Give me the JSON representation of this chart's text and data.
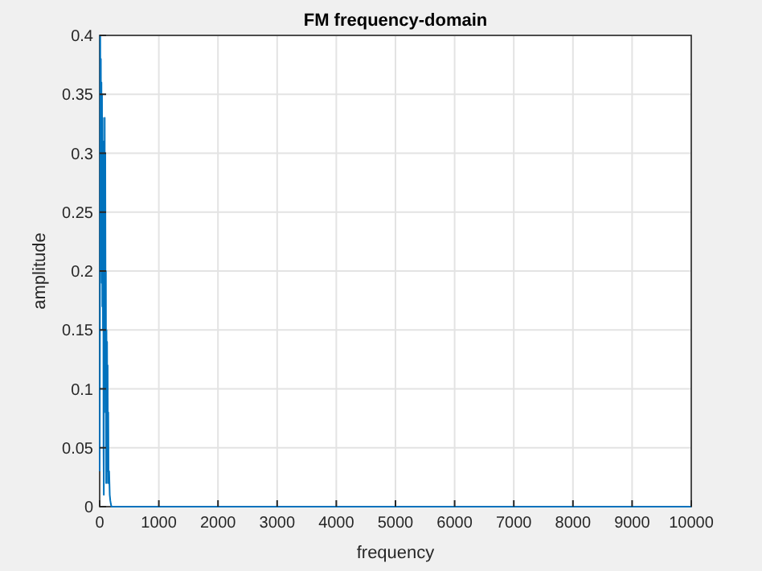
{
  "chart_data": {
    "type": "line",
    "title": "FM frequency-domain",
    "xlabel": "frequency",
    "ylabel": "amplitude",
    "series": [
      {
        "color": "#0072bd",
        "x": [
          0,
          5,
          10,
          15,
          20,
          25,
          30,
          35,
          40,
          45,
          50,
          55,
          60,
          65,
          70,
          75,
          80,
          85,
          90,
          95,
          100,
          105,
          110,
          115,
          120,
          125,
          130,
          135,
          140,
          145,
          150,
          160,
          170,
          180,
          190,
          200,
          300,
          1000,
          5000,
          10000
        ],
        "values": [
          0.03,
          0.17,
          0.4,
          0.21,
          0.38,
          0.2,
          0.36,
          0.19,
          0.35,
          0.17,
          0.33,
          0.15,
          0.31,
          0.05,
          0.01,
          0.3,
          0.08,
          0.33,
          0.1,
          0.3,
          0.14,
          0.2,
          0.02,
          0.15,
          0.03,
          0.14,
          0.05,
          0.12,
          0.02,
          0.08,
          0.03,
          0.03,
          0.01,
          0.005,
          0.002,
          0,
          0,
          0,
          0,
          0
        ]
      }
    ],
    "xlim": [
      0,
      10000
    ],
    "xticks": [
      0,
      1000,
      2000,
      3000,
      4000,
      5000,
      6000,
      7000,
      8000,
      9000,
      10000
    ],
    "ylim": [
      0,
      0.4
    ],
    "yticks": [
      0,
      0.05,
      0.1,
      0.15,
      0.2,
      0.25,
      0.3,
      0.35,
      0.4
    ],
    "grid": true,
    "marker": "none",
    "line_style": "solid"
  }
}
